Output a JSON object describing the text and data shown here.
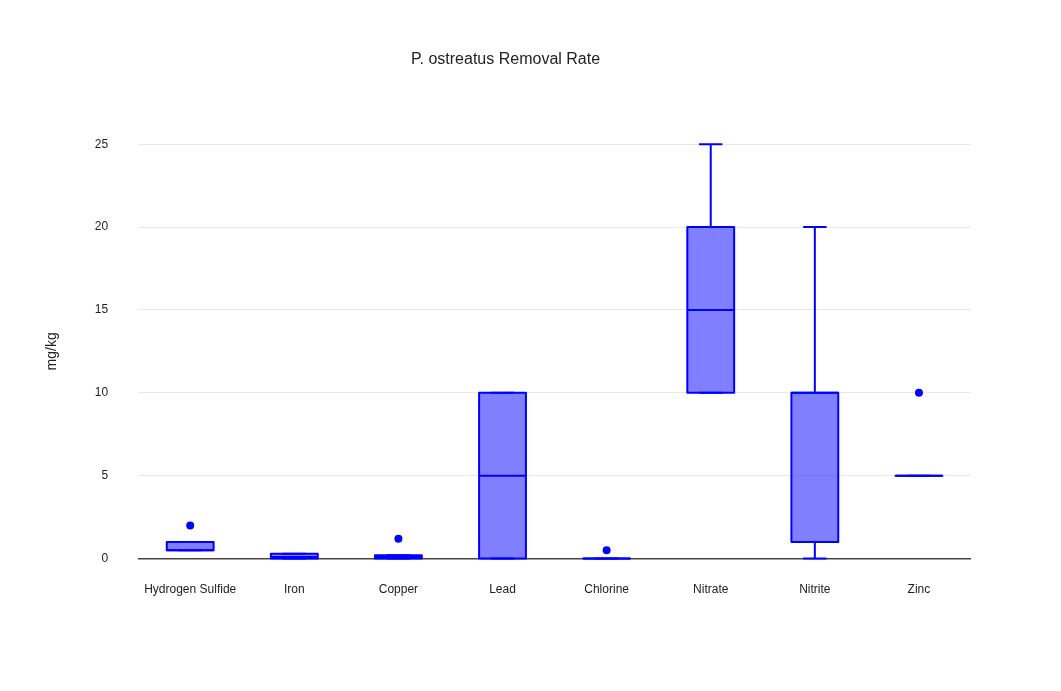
{
  "chart_data": {
    "type": "box",
    "title": "P. ostreatus Removal Rate",
    "ylabel": "mg/kg",
    "categories": [
      "Hydrogen Sulfide",
      "Iron",
      "Copper",
      "Lead",
      "Chlorine",
      "Nitrate",
      "Nitrite",
      "Zinc"
    ],
    "series": [
      {
        "color": "#0000ff",
        "boxes": [
          {
            "low": 0.5,
            "q1": 0.5,
            "median": 0.5,
            "q3": 1,
            "high": 1,
            "outliers": [
              2
            ]
          },
          {
            "low": 0,
            "q1": 0,
            "median": 0.1,
            "q3": 0.3,
            "high": 0.3
          },
          {
            "low": 0,
            "q1": 0,
            "median": 0.1,
            "q3": 0.2,
            "high": 0.2,
            "outliers": [
              1.2
            ]
          },
          {
            "low": 0,
            "q1": 0,
            "median": 5,
            "q3": 10,
            "high": 10
          },
          {
            "low": 0,
            "q1": 0,
            "median": 0,
            "q3": 0,
            "high": 0,
            "outliers": [
              0.5
            ]
          },
          {
            "low": 10,
            "q1": 10,
            "median": 15,
            "q3": 20,
            "high": 25
          },
          {
            "low": 0,
            "q1": 1,
            "median": 10,
            "q3": 10,
            "high": 20
          },
          {
            "low": 5,
            "q1": 5,
            "median": 5,
            "q3": 5,
            "high": 5,
            "outliers": [
              10
            ]
          }
        ]
      }
    ],
    "ylim": [
      0,
      25
    ],
    "yticks": [
      0,
      5,
      10,
      15,
      20,
      25
    ],
    "grid": "y",
    "legend": false
  }
}
